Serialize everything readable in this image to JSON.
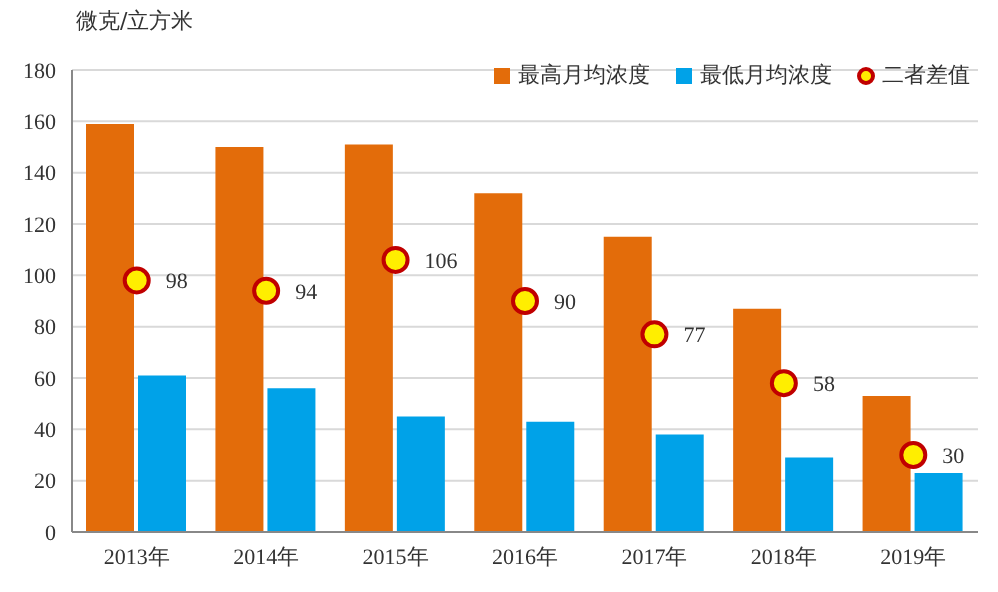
{
  "chart_data": {
    "type": "bar",
    "ylabel": "微克/立方米",
    "categories": [
      "2013年",
      "2014年",
      "2015年",
      "2016年",
      "2017年",
      "2018年",
      "2019年"
    ],
    "series": [
      {
        "name": "最高月均浓度",
        "color": "#e36c0a",
        "values": [
          159,
          150,
          151,
          132,
          115,
          87,
          53
        ]
      },
      {
        "name": "最低月均浓度",
        "color": "#00a2e8",
        "values": [
          61,
          56,
          45,
          43,
          38,
          29,
          23
        ]
      },
      {
        "name": "二者差值",
        "type": "scatter",
        "color": "#ffee00",
        "values": [
          98,
          94,
          106,
          90,
          77,
          58,
          30
        ],
        "value_labels": [
          "98",
          "94",
          "106",
          "90",
          "77",
          "58",
          "30"
        ]
      }
    ],
    "ylim": [
      0,
      180
    ],
    "yticks": [
      0,
      20,
      40,
      60,
      80,
      100,
      120,
      140,
      160,
      180
    ],
    "grid": "y",
    "legend": "top right",
    "marker": "circle"
  }
}
